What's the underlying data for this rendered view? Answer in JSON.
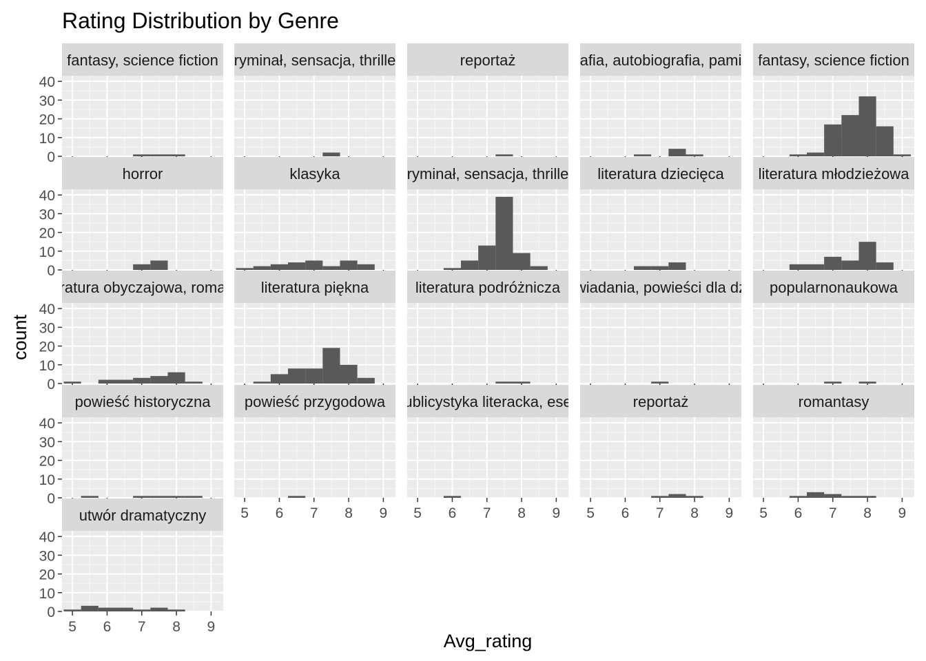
{
  "chart_data": {
    "type": "bar",
    "title": "Rating Distribution by Genre",
    "xlabel": "Avg_rating",
    "ylabel": "count",
    "xlim": [
      4.7,
      9.35
    ],
    "ylim": [
      0,
      43
    ],
    "x_ticks": [
      "5",
      "6",
      "7",
      "8",
      "9"
    ],
    "y_ticks": [
      "0",
      "10",
      "20",
      "30",
      "40"
    ],
    "bin_width": 0.5,
    "grid": true,
    "colors": {
      "bar": "#595959",
      "panel": "#ebebeb",
      "strip": "#d9d9d9",
      "grid_major": "#ffffff"
    },
    "facets": [
      {
        "label": "fantasy, science fiction",
        "bins": [
          {
            "x": 7.0,
            "count": 1
          },
          {
            "x": 7.5,
            "count": 1
          },
          {
            "x": 8.0,
            "count": 1
          }
        ]
      },
      {
        "label": "ryminał, sensacja, thrille",
        "bins": [
          {
            "x": 7.5,
            "count": 2
          }
        ]
      },
      {
        "label": "reportaż",
        "bins": [
          {
            "x": 7.5,
            "count": 1
          }
        ]
      },
      {
        "label": "afia, autobiografia, pami",
        "bins": [
          {
            "x": 6.5,
            "count": 1
          },
          {
            "x": 7.5,
            "count": 4
          },
          {
            "x": 8.0,
            "count": 1
          }
        ]
      },
      {
        "label": "fantasy, science fiction",
        "bins": [
          {
            "x": 6.0,
            "count": 1
          },
          {
            "x": 6.5,
            "count": 2
          },
          {
            "x": 7.0,
            "count": 17
          },
          {
            "x": 7.5,
            "count": 22
          },
          {
            "x": 8.0,
            "count": 32
          },
          {
            "x": 8.5,
            "count": 16
          },
          {
            "x": 9.0,
            "count": 1
          }
        ]
      },
      {
        "label": "horror",
        "bins": [
          {
            "x": 7.0,
            "count": 3
          },
          {
            "x": 7.5,
            "count": 5
          }
        ]
      },
      {
        "label": "klasyka",
        "bins": [
          {
            "x": 5.0,
            "count": 1
          },
          {
            "x": 5.5,
            "count": 2
          },
          {
            "x": 6.0,
            "count": 3
          },
          {
            "x": 6.5,
            "count": 4
          },
          {
            "x": 7.0,
            "count": 5
          },
          {
            "x": 7.5,
            "count": 2
          },
          {
            "x": 8.0,
            "count": 5
          },
          {
            "x": 8.5,
            "count": 3
          }
        ]
      },
      {
        "label": "ryminał, sensacja, thrille",
        "bins": [
          {
            "x": 6.0,
            "count": 1
          },
          {
            "x": 6.5,
            "count": 5
          },
          {
            "x": 7.0,
            "count": 13
          },
          {
            "x": 7.5,
            "count": 39
          },
          {
            "x": 8.0,
            "count": 9
          },
          {
            "x": 8.5,
            "count": 2
          }
        ]
      },
      {
        "label": "literatura dziecięca",
        "bins": [
          {
            "x": 6.5,
            "count": 2
          },
          {
            "x": 7.0,
            "count": 2
          },
          {
            "x": 7.5,
            "count": 4
          }
        ]
      },
      {
        "label": "literatura młodzieżowa",
        "bins": [
          {
            "x": 6.0,
            "count": 3
          },
          {
            "x": 6.5,
            "count": 3
          },
          {
            "x": 7.0,
            "count": 7
          },
          {
            "x": 7.5,
            "count": 5
          },
          {
            "x": 8.0,
            "count": 15
          },
          {
            "x": 8.5,
            "count": 4
          }
        ]
      },
      {
        "label": "ratura obyczajowa, roma",
        "bins": [
          {
            "x": 5.0,
            "count": 1
          },
          {
            "x": 6.0,
            "count": 2
          },
          {
            "x": 6.5,
            "count": 2
          },
          {
            "x": 7.0,
            "count": 3
          },
          {
            "x": 7.5,
            "count": 4
          },
          {
            "x": 8.0,
            "count": 6
          },
          {
            "x": 8.5,
            "count": 1
          }
        ]
      },
      {
        "label": "literatura piękna",
        "bins": [
          {
            "x": 5.5,
            "count": 1
          },
          {
            "x": 6.0,
            "count": 5
          },
          {
            "x": 6.5,
            "count": 8
          },
          {
            "x": 7.0,
            "count": 8
          },
          {
            "x": 7.5,
            "count": 19
          },
          {
            "x": 8.0,
            "count": 10
          },
          {
            "x": 8.5,
            "count": 3
          }
        ]
      },
      {
        "label": "literatura podróżnicza",
        "bins": [
          {
            "x": 7.5,
            "count": 1
          },
          {
            "x": 8.0,
            "count": 1
          }
        ]
      },
      {
        "label": "wiadania, powieści dla dz",
        "bins": [
          {
            "x": 7.0,
            "count": 1
          }
        ]
      },
      {
        "label": "popularnonaukowa",
        "bins": [
          {
            "x": 7.0,
            "count": 1
          },
          {
            "x": 8.0,
            "count": 1
          }
        ]
      },
      {
        "label": "powieść historyczna",
        "bins": [
          {
            "x": 5.5,
            "count": 1
          },
          {
            "x": 7.0,
            "count": 1
          },
          {
            "x": 7.5,
            "count": 1
          },
          {
            "x": 8.0,
            "count": 1
          },
          {
            "x": 8.5,
            "count": 1
          }
        ]
      },
      {
        "label": "powieść przygodowa",
        "bins": [
          {
            "x": 6.5,
            "count": 1
          }
        ]
      },
      {
        "label": "ublicystyka literacka, ese",
        "bins": [
          {
            "x": 6.0,
            "count": 1
          }
        ]
      },
      {
        "label": "reportaż",
        "bins": [
          {
            "x": 7.0,
            "count": 1
          },
          {
            "x": 7.5,
            "count": 2
          },
          {
            "x": 8.0,
            "count": 1
          }
        ]
      },
      {
        "label": "romantasy",
        "bins": [
          {
            "x": 6.0,
            "count": 1
          },
          {
            "x": 6.5,
            "count": 3
          },
          {
            "x": 7.0,
            "count": 2
          },
          {
            "x": 7.5,
            "count": 1
          },
          {
            "x": 8.0,
            "count": 1
          }
        ]
      },
      {
        "label": "utwór dramatyczny",
        "bins": [
          {
            "x": 5.0,
            "count": 1
          },
          {
            "x": 5.5,
            "count": 3
          },
          {
            "x": 6.0,
            "count": 2
          },
          {
            "x": 6.5,
            "count": 2
          },
          {
            "x": 7.0,
            "count": 1
          },
          {
            "x": 7.5,
            "count": 2
          },
          {
            "x": 8.0,
            "count": 1
          }
        ]
      }
    ]
  }
}
